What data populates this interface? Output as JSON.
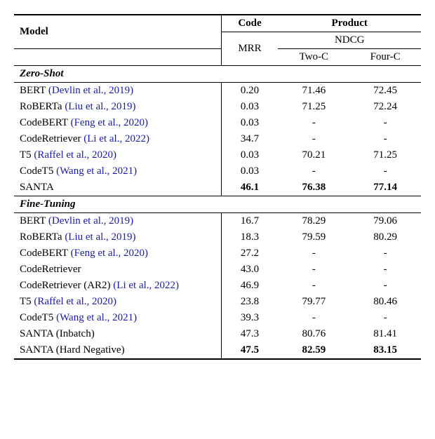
{
  "header": {
    "model": "Model",
    "code": "Code",
    "product": "Product",
    "mrr": "MRR",
    "ndcg": "NDCG",
    "twoc": "Two-C",
    "fourc": "Four-C"
  },
  "sections": {
    "zero": "Zero-Shot",
    "fine": "Fine-Tuning"
  },
  "zero": [
    {
      "model": "BERT ",
      "cite": "(Devlin et al., 2019)",
      "mrr": "0.20",
      "twoc": "71.46",
      "fourc": "72.45",
      "bold": false
    },
    {
      "model": "RoBERTa ",
      "cite": "(Liu et al., 2019)",
      "mrr": "0.03",
      "twoc": "71.25",
      "fourc": "72.24",
      "bold": false
    },
    {
      "model": "CodeBERT ",
      "cite": "(Feng et al., 2020)",
      "mrr": "0.03",
      "twoc": "-",
      "fourc": "-",
      "bold": false
    },
    {
      "model": "CodeRetriever ",
      "cite": "(Li et al., 2022)",
      "mrr": "34.7",
      "twoc": "-",
      "fourc": "-",
      "bold": false
    },
    {
      "model": "T5 ",
      "cite": "(Raffel et al., 2020)",
      "mrr": "0.03",
      "twoc": "70.21",
      "fourc": "71.25",
      "bold": false
    },
    {
      "model": "CodeT5 ",
      "cite": "(Wang et al., 2021)",
      "mrr": "0.03",
      "twoc": "-",
      "fourc": "-",
      "bold": false
    },
    {
      "model": "SANTA",
      "cite": "",
      "mrr": "46.1",
      "twoc": "76.38",
      "fourc": "77.14",
      "bold": true
    }
  ],
  "fine": [
    {
      "model": "BERT ",
      "cite": "(Devlin et al., 2019)",
      "mrr": "16.7",
      "twoc": "78.29",
      "fourc": "79.06",
      "bold": false
    },
    {
      "model": "RoBERTa ",
      "cite": "(Liu et al., 2019)",
      "mrr": "18.3",
      "twoc": "79.59",
      "fourc": "80.29",
      "bold": false
    },
    {
      "model": "CodeBERT ",
      "cite": "(Feng et al., 2020)",
      "mrr": "27.2",
      "twoc": "-",
      "fourc": "-",
      "bold": false
    },
    {
      "model": "CodeRetriever",
      "cite": "",
      "mrr": "43.0",
      "twoc": "-",
      "fourc": "-",
      "bold": false
    },
    {
      "model": "CodeRetriever (AR2) ",
      "cite": "(Li et al., 2022)",
      "mrr": "46.9",
      "twoc": "-",
      "fourc": "-",
      "bold": false
    },
    {
      "model": "T5 ",
      "cite": "(Raffel et al., 2020)",
      "mrr": "23.8",
      "twoc": "79.77",
      "fourc": "80.46",
      "bold": false
    },
    {
      "model": "CodeT5 ",
      "cite": "(Wang et al., 2021)",
      "mrr": "39.3",
      "twoc": "-",
      "fourc": "-",
      "bold": false
    },
    {
      "model": "SANTA (Inbatch)",
      "cite": "",
      "mrr": "47.3",
      "twoc": "80.76",
      "fourc": "81.41",
      "bold": false
    },
    {
      "model": "SANTA (Hard Negative)",
      "cite": "",
      "mrr": "47.5",
      "twoc": "82.59",
      "fourc": "83.15",
      "bold": true
    }
  ]
}
